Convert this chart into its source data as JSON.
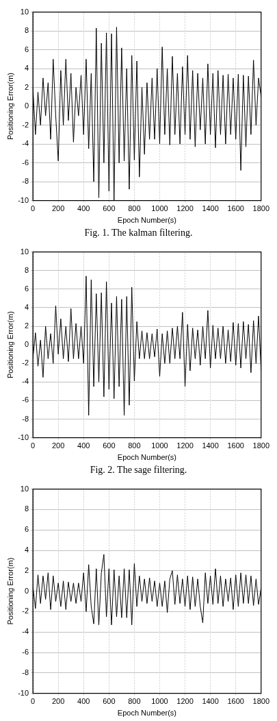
{
  "chart_data": [
    {
      "type": "line",
      "xlabel": "Epoch Number(s)",
      "ylabel": "Positioning Error(m)",
      "xlim": [
        0,
        1800
      ],
      "xticks": [
        0,
        200,
        400,
        600,
        800,
        1000,
        1200,
        1400,
        1600,
        1800
      ],
      "ylim": [
        -10,
        10
      ],
      "yticks": [
        -10,
        -8,
        -6,
        -4,
        -2,
        0,
        2,
        4,
        6,
        8,
        10
      ],
      "grid": true,
      "legend": false,
      "marker": "none",
      "line_style": "solid",
      "annotations": [
        "Fig. 1. The kalman filtering."
      ],
      "x": [
        0,
        20,
        40,
        60,
        80,
        100,
        120,
        140,
        160,
        180,
        200,
        220,
        240,
        260,
        280,
        300,
        320,
        340,
        360,
        380,
        400,
        420,
        440,
        460,
        480,
        500,
        520,
        540,
        560,
        580,
        600,
        620,
        640,
        660,
        680,
        700,
        720,
        740,
        760,
        780,
        800,
        820,
        840,
        860,
        880,
        900,
        920,
        940,
        960,
        980,
        1000,
        1020,
        1040,
        1060,
        1080,
        1100,
        1120,
        1140,
        1160,
        1180,
        1200,
        1220,
        1240,
        1260,
        1280,
        1300,
        1320,
        1340,
        1360,
        1380,
        1400,
        1420,
        1440,
        1460,
        1480,
        1500,
        1520,
        1540,
        1560,
        1580,
        1600,
        1620,
        1640,
        1660,
        1680,
        1700,
        1720,
        1740,
        1760,
        1780,
        1800
      ],
      "series": [
        {
          "color": "#000000",
          "values": [
            2,
            -3,
            1.5,
            -2,
            3,
            -1,
            2.5,
            -3.5,
            5,
            -1,
            -5.8,
            3.8,
            -2,
            5,
            -1.5,
            3.5,
            -3.8,
            2,
            -1,
            3.3,
            -3,
            5,
            -4.5,
            3.5,
            -8,
            8.3,
            -9.7,
            6.7,
            -6,
            7.8,
            -9,
            7.7,
            -10,
            8.4,
            -6,
            6.2,
            -5.8,
            4,
            -8.8,
            5.4,
            -5.7,
            4.8,
            -7.5,
            2,
            -5.1,
            2.5,
            -3.5,
            3,
            -3.5,
            4,
            -4,
            6.3,
            -3,
            4,
            -4.1,
            5.3,
            -3,
            3.5,
            -4,
            4.2,
            -3,
            5.4,
            -3.5,
            3.8,
            -4.3,
            3.5,
            -2.5,
            3,
            -4,
            4.5,
            -3,
            3.5,
            -4.4,
            3.8,
            -3,
            3.3,
            -4,
            3.4,
            -3,
            3,
            -3.5,
            3.4,
            -6.8,
            3.3,
            -4.3,
            3.2,
            -3,
            4.9,
            -2,
            3,
            1
          ]
        }
      ]
    },
    {
      "type": "line",
      "xlabel": "Epoch Number(s)",
      "ylabel": "Positioning Error(m)",
      "xlim": [
        0,
        1800
      ],
      "xticks": [
        0,
        200,
        400,
        600,
        800,
        1000,
        1200,
        1400,
        1600,
        1800
      ],
      "ylim": [
        -10,
        10
      ],
      "yticks": [
        -10,
        -8,
        -6,
        -4,
        -2,
        0,
        2,
        4,
        6,
        8,
        10
      ],
      "grid": true,
      "legend": false,
      "marker": "none",
      "line_style": "solid",
      "annotations": [
        "Fig. 2. The sage filtering."
      ],
      "x": [
        0,
        20,
        40,
        60,
        80,
        100,
        120,
        140,
        160,
        180,
        200,
        220,
        240,
        260,
        280,
        300,
        320,
        340,
        360,
        380,
        400,
        420,
        440,
        460,
        480,
        500,
        520,
        540,
        560,
        580,
        600,
        620,
        640,
        660,
        680,
        700,
        720,
        740,
        760,
        780,
        800,
        820,
        840,
        860,
        880,
        900,
        920,
        940,
        960,
        980,
        1000,
        1020,
        1040,
        1060,
        1080,
        1100,
        1120,
        1140,
        1160,
        1180,
        1200,
        1220,
        1240,
        1260,
        1280,
        1300,
        1320,
        1340,
        1360,
        1380,
        1400,
        1420,
        1440,
        1460,
        1480,
        1500,
        1520,
        1540,
        1560,
        1580,
        1600,
        1620,
        1640,
        1660,
        1680,
        1700,
        1720,
        1740,
        1760,
        1780,
        1800
      ],
      "series": [
        {
          "color": "#000000",
          "values": [
            -1.5,
            1.3,
            -2.3,
            0.5,
            -3.5,
            2,
            -1.5,
            1.2,
            -2,
            4.2,
            -1,
            2.8,
            -1.5,
            2,
            -1.8,
            3.9,
            -1.5,
            2.3,
            -1.5,
            2,
            -2,
            7.4,
            -7.6,
            7,
            -4.5,
            5.5,
            -4,
            5.6,
            -5.6,
            6.8,
            -4.8,
            4.5,
            -5.8,
            5.2,
            -4.5,
            4.9,
            -7.6,
            5.2,
            -6.5,
            6.2,
            -3.9,
            2.5,
            -1.5,
            1.5,
            -1.5,
            1.3,
            -1.5,
            1.2,
            -1.3,
            1.7,
            -3.4,
            1.2,
            -2,
            1.5,
            -2,
            1.8,
            -1.5,
            2,
            -1.5,
            3.5,
            -4.5,
            2.2,
            -2.8,
            1.8,
            -1.5,
            1.6,
            -2.2,
            2,
            -1.5,
            3.7,
            -2.5,
            2.1,
            -1.5,
            1.8,
            -1.5,
            2,
            -2,
            1.6,
            -1.8,
            2.4,
            -2.2,
            2.3,
            -2.5,
            2.5,
            -1.5,
            2.2,
            -3,
            2.6,
            -2,
            3.1,
            -2.8
          ]
        }
      ]
    },
    {
      "type": "line",
      "xlabel": "Epoch Number(s)",
      "ylabel": "Positioning Error(m)",
      "xlim": [
        0,
        1800
      ],
      "xticks": [
        0,
        200,
        400,
        600,
        800,
        1000,
        1200,
        1400,
        1600,
        1800
      ],
      "ylim": [
        -10,
        10
      ],
      "yticks": [
        -10,
        -8,
        -6,
        -4,
        -2,
        0,
        2,
        4,
        6,
        8,
        10
      ],
      "grid": true,
      "legend": false,
      "marker": "none",
      "line_style": "solid",
      "x": [
        0,
        20,
        40,
        60,
        80,
        100,
        120,
        140,
        160,
        180,
        200,
        220,
        240,
        260,
        280,
        300,
        320,
        340,
        360,
        380,
        400,
        420,
        440,
        460,
        480,
        500,
        520,
        540,
        560,
        580,
        600,
        620,
        640,
        660,
        680,
        700,
        720,
        740,
        760,
        780,
        800,
        820,
        840,
        860,
        880,
        900,
        920,
        940,
        960,
        980,
        1000,
        1020,
        1040,
        1060,
        1080,
        1100,
        1120,
        1140,
        1160,
        1180,
        1200,
        1220,
        1240,
        1260,
        1280,
        1300,
        1320,
        1340,
        1360,
        1380,
        1400,
        1420,
        1440,
        1460,
        1480,
        1500,
        1520,
        1540,
        1560,
        1580,
        1600,
        1620,
        1640,
        1660,
        1680,
        1700,
        1720,
        1740,
        1760,
        1780,
        1800
      ],
      "series": [
        {
          "color": "#000000",
          "values": [
            0.5,
            -1.7,
            1.6,
            -1.2,
            1.5,
            -0.8,
            1.8,
            -1.8,
            1.5,
            -1,
            0.8,
            -1.5,
            1,
            -1.8,
            0.9,
            -1,
            0.8,
            -1.2,
            0.8,
            -1,
            1.8,
            -2,
            2.6,
            -1.5,
            -3.2,
            2.2,
            -3.3,
            1.8,
            3.6,
            -2.5,
            2.2,
            -3.3,
            2.1,
            -2.5,
            1.5,
            -2.6,
            2.2,
            -2.6,
            2.1,
            -3.3,
            2.7,
            -1.5,
            1.5,
            -1,
            1.2,
            -1.2,
            1.3,
            -1,
            1,
            -1.5,
            0.8,
            -1.5,
            1,
            -2.1,
            1.2,
            2,
            -1.3,
            1.6,
            -1.2,
            1.2,
            -1.5,
            1.5,
            -1.8,
            1.4,
            -1.5,
            1.2,
            -1.5,
            -3.1,
            1.8,
            -1.2,
            1.5,
            -1.3,
            2.2,
            -1.2,
            1.5,
            -1.5,
            1.2,
            -1,
            1.3,
            -1.8,
            1.6,
            -1.5,
            1.8,
            -1.2,
            1.6,
            -1.2,
            1.5,
            -1.4,
            1.2,
            -1.3,
            0.3
          ]
        }
      ]
    }
  ]
}
